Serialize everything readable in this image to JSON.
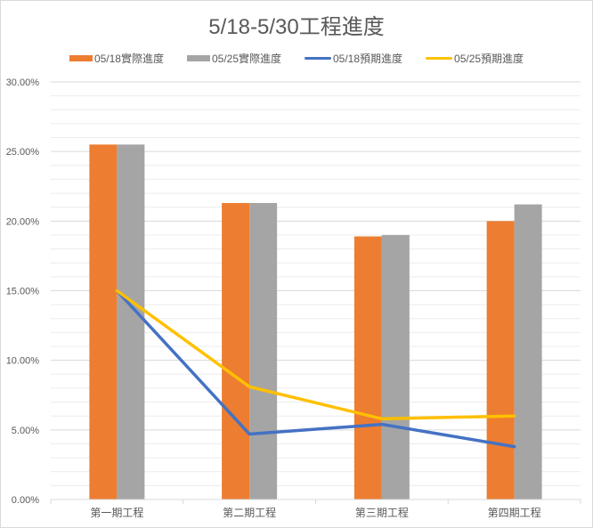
{
  "chart_data": {
    "type": "bar",
    "title": "5/18-5/30工程進度",
    "categories": [
      "第一期工程",
      "第二期工程",
      "第三期工程",
      "第四期工程"
    ],
    "ylim": [
      0,
      30
    ],
    "yticks": [
      "0.00%",
      "5.00%",
      "10.00%",
      "15.00%",
      "20.00%",
      "25.00%",
      "30.00%"
    ],
    "minor_grid": true,
    "legend_position": "top",
    "series": [
      {
        "name": "05/18實際進度",
        "kind": "bar",
        "color": "#ed7d31",
        "values": [
          25.5,
          21.3,
          18.9,
          20.0
        ]
      },
      {
        "name": "05/25實際進度",
        "kind": "bar",
        "color": "#a5a5a5",
        "values": [
          25.5,
          21.3,
          19.0,
          21.2
        ]
      },
      {
        "name": "05/18預期進度",
        "kind": "line",
        "color": "#4472c4",
        "values": [
          15.0,
          4.7,
          5.4,
          3.8
        ]
      },
      {
        "name": "05/25預期進度",
        "kind": "line",
        "color": "#ffc000",
        "values": [
          15.0,
          8.1,
          5.8,
          6.0
        ]
      }
    ]
  }
}
